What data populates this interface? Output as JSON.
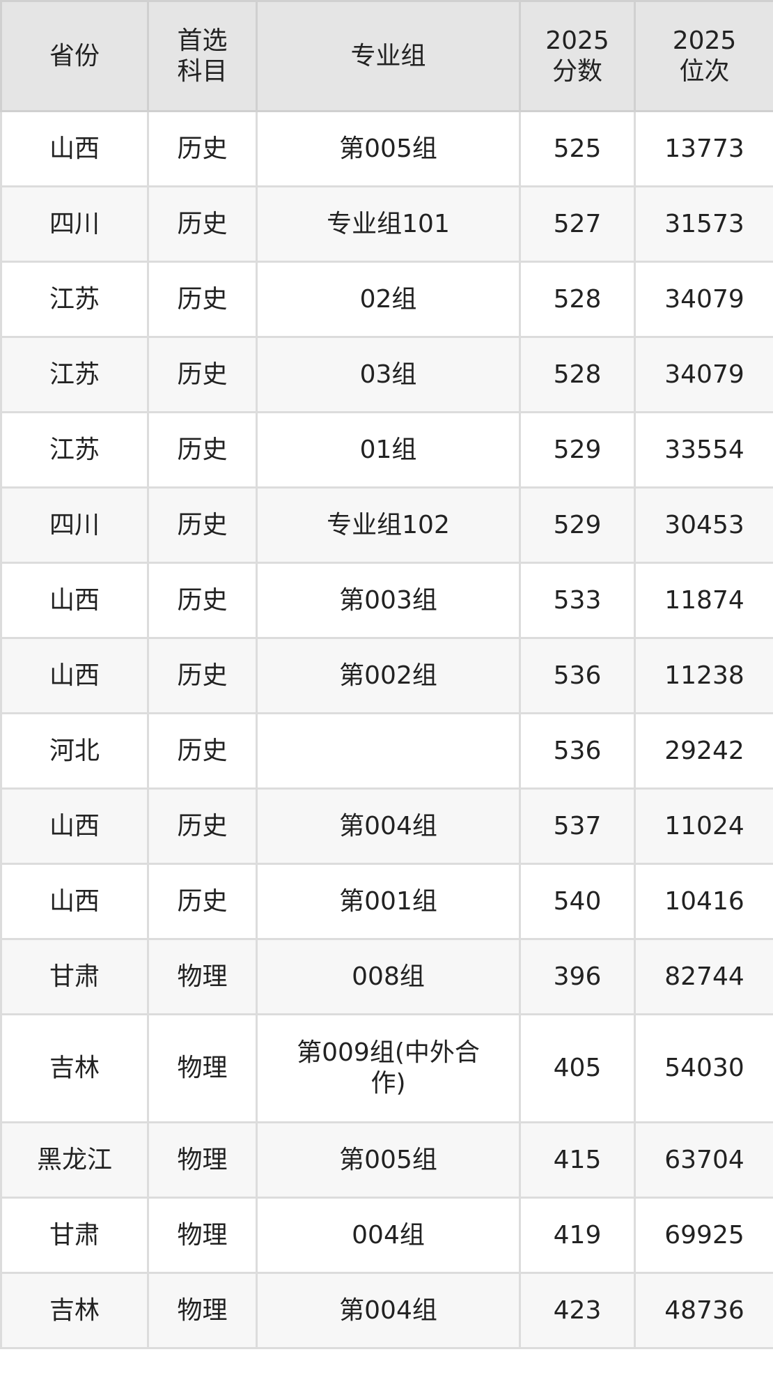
{
  "headers": [
    [
      "省份"
    ],
    [
      "首选",
      "科目"
    ],
    [
      "专业组"
    ],
    [
      "2025",
      "分数"
    ],
    [
      "2025",
      "位次"
    ]
  ],
  "rows": [
    [
      "山西",
      "历史",
      "第005组",
      "525",
      "13773"
    ],
    [
      "四川",
      "历史",
      "专业组101",
      "527",
      "31573"
    ],
    [
      "江苏",
      "历史",
      "02组",
      "528",
      "34079"
    ],
    [
      "江苏",
      "历史",
      "03组",
      "528",
      "34079"
    ],
    [
      "江苏",
      "历史",
      "01组",
      "529",
      "33554"
    ],
    [
      "四川",
      "历史",
      "专业组102",
      "529",
      "30453"
    ],
    [
      "山西",
      "历史",
      "第003组",
      "533",
      "11874"
    ],
    [
      "山西",
      "历史",
      "第002组",
      "536",
      "11238"
    ],
    [
      "河北",
      "历史",
      "",
      "536",
      "29242"
    ],
    [
      "山西",
      "历史",
      "第004组",
      "537",
      "11024"
    ],
    [
      "山西",
      "历史",
      "第001组",
      "540",
      "10416"
    ],
    [
      "甘肃",
      "物理",
      "008组",
      "396",
      "82744"
    ],
    [
      "吉林",
      "物理",
      "第009组(中外合作)",
      "405",
      "54030"
    ],
    [
      "黑龙江",
      "物理",
      "第005组",
      "415",
      "63704"
    ],
    [
      "甘肃",
      "物理",
      "004组",
      "419",
      "69925"
    ],
    [
      "吉林",
      "物理",
      "第004组",
      "423",
      "48736"
    ]
  ]
}
